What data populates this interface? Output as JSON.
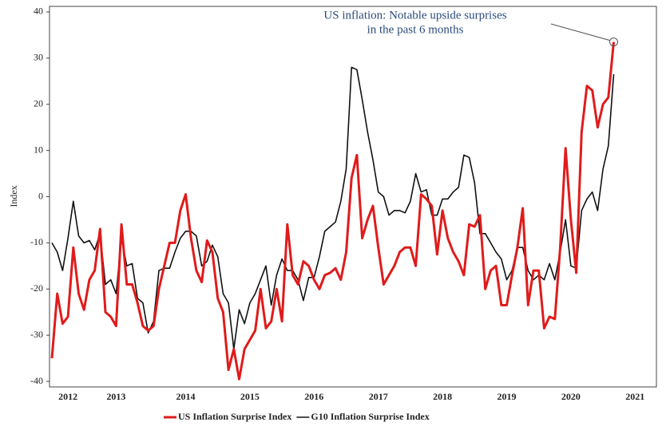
{
  "chart_data": {
    "type": "line",
    "ylabel": "Index",
    "annotation": [
      "US inflation: Notable upside surprises",
      "in the past 6 months"
    ],
    "categories": [
      null,
      null,
      null,
      "2012",
      null,
      null,
      null,
      null,
      null,
      null,
      null,
      null,
      "2013",
      null,
      null,
      null,
      null,
      null,
      null,
      null,
      null,
      null,
      null,
      null,
      null,
      "2014",
      null,
      null,
      null,
      null,
      null,
      null,
      null,
      null,
      null,
      null,
      null,
      "2015",
      null,
      null,
      null,
      null,
      null,
      null,
      null,
      null,
      null,
      null,
      null,
      "2016",
      null,
      null,
      null,
      null,
      null,
      null,
      null,
      null,
      null,
      null,
      null,
      "2017",
      null,
      null,
      null,
      null,
      null,
      null,
      null,
      null,
      null,
      null,
      null,
      "2018",
      null,
      null,
      null,
      null,
      null,
      null,
      null,
      null,
      null,
      null,
      null,
      "2019",
      null,
      null,
      null,
      null,
      null,
      null,
      null,
      null,
      null,
      null,
      null,
      "2020",
      null,
      null,
      null,
      null,
      null,
      null,
      null,
      null,
      null,
      null,
      null,
      "2021"
    ],
    "series": [
      {
        "name": "US Inflation Surprise Index",
        "color": "#e01b1b",
        "values": [
          -35,
          -21,
          -27.5,
          -26,
          -11,
          -21,
          -24.5,
          -18,
          -16,
          -7,
          -25,
          -26,
          -28,
          -6,
          -19,
          -19,
          -23,
          -28,
          -29,
          -28,
          -20,
          -15,
          -10,
          -10,
          -3,
          0.5,
          -9,
          -16,
          -18.5,
          -9.5,
          -12,
          -22,
          -25,
          -37.5,
          -33,
          -39.5,
          -33,
          -31,
          -29,
          -20,
          -28.5,
          -27,
          -20,
          -27,
          -6,
          -17,
          -19,
          -14,
          -15,
          -18,
          -20,
          -17,
          -16.5,
          -15.5,
          -18,
          -12,
          4,
          9,
          -9,
          -5,
          -2,
          -11,
          -19,
          -17,
          -15,
          -12,
          -11,
          -11,
          -15,
          0.5,
          -0.5,
          -2,
          -12.5,
          -3,
          -9,
          -12,
          -14,
          -17,
          -6,
          -6.5,
          -4,
          -20,
          -16,
          -15,
          -23.5,
          -23.5,
          -17,
          -11,
          -2.5,
          -23.5,
          -16,
          -16,
          -28.5,
          -26,
          -26.5,
          -11,
          10.5,
          -5,
          -16.5,
          14,
          24,
          23,
          15,
          20,
          21.5,
          33.5,
          null,
          null,
          null,
          null
        ]
      },
      {
        "name": "G10 Inflation Surprise Index",
        "color": "#111111",
        "values": [
          -10,
          -12,
          -16,
          -9,
          -1,
          -8.5,
          -10,
          -9.5,
          -11.5,
          -8,
          -19,
          -18,
          -21,
          -9,
          -15,
          -14.5,
          -22,
          -23,
          -29.5,
          -27,
          -16,
          -15.5,
          -15.5,
          -12,
          -9,
          -7.5,
          -7.5,
          -8.5,
          -15,
          -14,
          -10.5,
          -13,
          -21,
          -23,
          -33,
          -24.5,
          -27.5,
          -23,
          -21,
          -18,
          -15,
          -23.5,
          -17,
          -13.5,
          -16,
          -16,
          -18,
          -22.5,
          -17.5,
          -17.5,
          -13,
          -7.5,
          -6.5,
          -5.5,
          -1,
          6,
          28,
          27.5,
          21,
          14,
          8,
          1,
          0,
          -4,
          -3,
          -3,
          -3.5,
          -1,
          5,
          1,
          1.5,
          -4,
          -4,
          -0.5,
          -0.5,
          1,
          2,
          9,
          8.5,
          3,
          -8,
          -8,
          -10,
          -12,
          -13.5,
          -18,
          -16,
          -11,
          -11,
          -16,
          -18,
          -17,
          -18,
          -14.5,
          -18,
          -12,
          -5,
          -15,
          -15.5,
          -3,
          -0.5,
          1,
          -3,
          6,
          11,
          26.5,
          null,
          null,
          null,
          null
        ]
      }
    ],
    "ylim": [
      -41.2,
      41.2
    ],
    "yticks": [
      -40,
      -30,
      -20,
      -10,
      0,
      10,
      20,
      30,
      40
    ],
    "legend": "bottom"
  }
}
